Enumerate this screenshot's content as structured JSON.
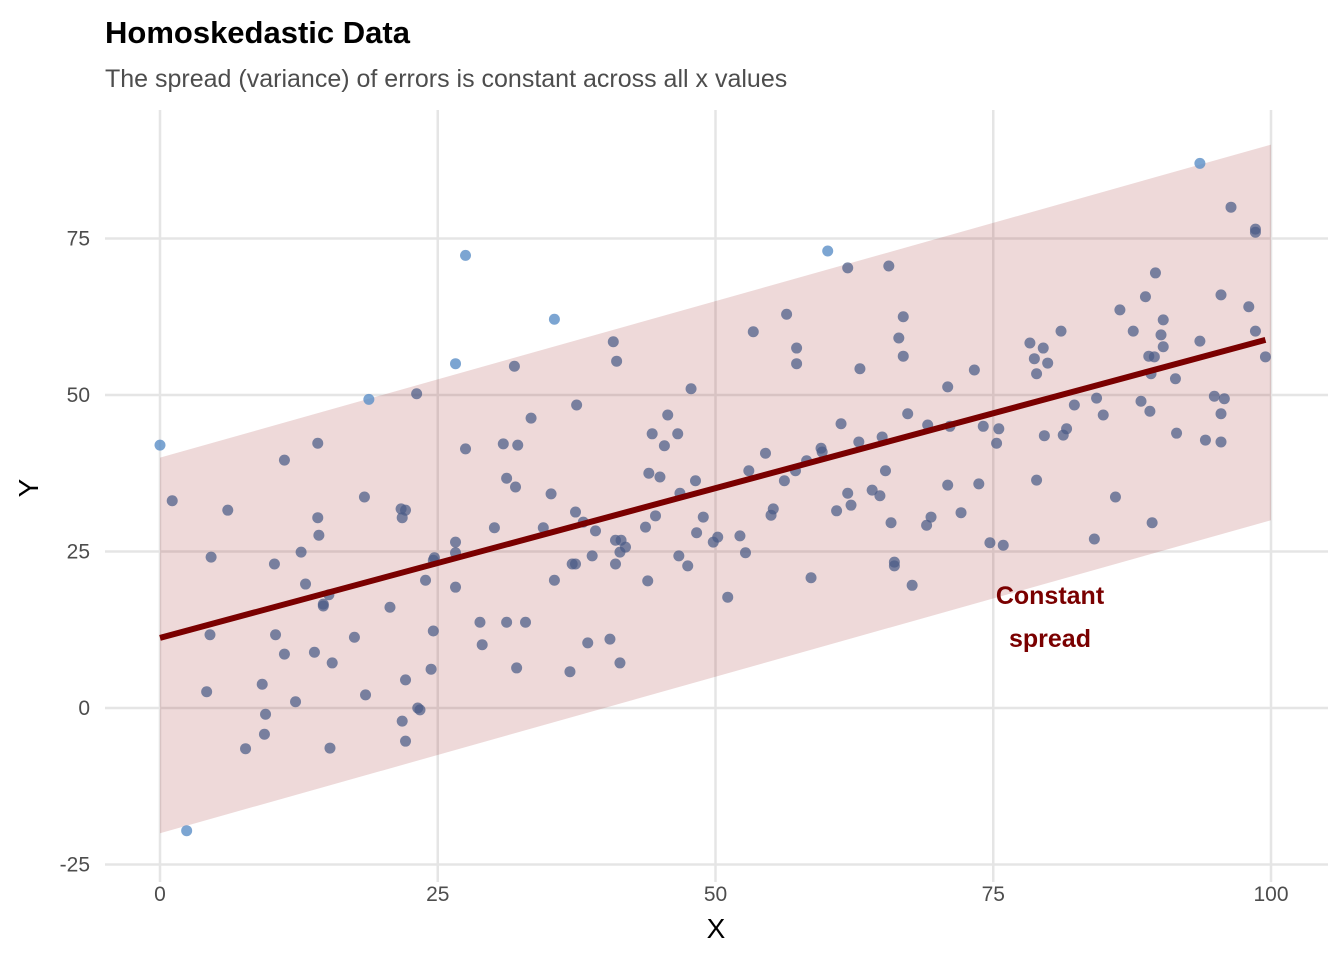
{
  "chart_data": {
    "type": "scatter",
    "title": "Homoskedastic Data",
    "subtitle": "The spread (variance) of errors is constant across all x values",
    "xlabel": "X",
    "ylabel": "Y",
    "xlim": [
      0,
      100
    ],
    "ylim": [
      -25,
      90
    ],
    "x_ticks": [
      0,
      25,
      50,
      75,
      100
    ],
    "y_ticks": [
      -25,
      0,
      25,
      50,
      75
    ],
    "grid": true,
    "colors": {
      "points": "#4b5b86",
      "outliers": "#5b8fc7",
      "line": "#7a0000",
      "band": "#e9d8d9"
    },
    "fit_line": {
      "x": [
        0,
        99.5
      ],
      "y": [
        11.2,
        58.8
      ]
    },
    "band": {
      "x": [
        0,
        100
      ],
      "upper": [
        40,
        90
      ],
      "lower": [
        -20,
        30
      ]
    },
    "annotation": {
      "lines": [
        "Constant",
        "spread"
      ],
      "x": 80,
      "y": 14
    },
    "outlier_points": [
      [
        0,
        42
      ],
      [
        2.4,
        -19.6
      ],
      [
        18.8,
        49.3
      ],
      [
        26.6,
        55
      ],
      [
        27.5,
        72.3
      ],
      [
        35.5,
        62.1
      ],
      [
        60.1,
        73
      ],
      [
        93.6,
        87
      ]
    ],
    "points": [
      [
        1.1,
        33.1
      ],
      [
        4.6,
        24.1
      ],
      [
        6.1,
        31.6
      ],
      [
        4.5,
        11.7
      ],
      [
        4.2,
        2.6
      ],
      [
        7.7,
        -6.5
      ],
      [
        9.2,
        3.8
      ],
      [
        9.5,
        -1.0
      ],
      [
        9.4,
        -4.2
      ],
      [
        10.3,
        23.0
      ],
      [
        10.4,
        11.7
      ],
      [
        11.2,
        39.6
      ],
      [
        11.2,
        8.6
      ],
      [
        12.2,
        1.0
      ],
      [
        12.7,
        24.9
      ],
      [
        13.1,
        19.8
      ],
      [
        13.9,
        8.9
      ],
      [
        14.2,
        42.3
      ],
      [
        14.2,
        30.4
      ],
      [
        14.3,
        27.6
      ],
      [
        14.7,
        16.6
      ],
      [
        14.7,
        16.3
      ],
      [
        15.2,
        18.1
      ],
      [
        15.5,
        7.2
      ],
      [
        15.3,
        -6.4
      ],
      [
        17.5,
        11.3
      ],
      [
        18.4,
        33.7
      ],
      [
        18.5,
        2.1
      ],
      [
        20.7,
        16.1
      ],
      [
        21.7,
        31.8
      ],
      [
        21.8,
        30.4
      ],
      [
        22.1,
        31.6
      ],
      [
        21.8,
        -2.1
      ],
      [
        22.1,
        4.5
      ],
      [
        22.1,
        -5.3
      ],
      [
        23.1,
        50.2
      ],
      [
        23.2,
        0
      ],
      [
        23.4,
        -0.3
      ],
      [
        23.9,
        20.4
      ],
      [
        24.4,
        6.2
      ],
      [
        24.6,
        12.3
      ],
      [
        24.7,
        24.0
      ],
      [
        24.6,
        23.6
      ],
      [
        26.6,
        26.5
      ],
      [
        26.6,
        24.8
      ],
      [
        26.6,
        19.3
      ],
      [
        27.5,
        41.4
      ],
      [
        28.8,
        13.7
      ],
      [
        29.0,
        10.1
      ],
      [
        30.1,
        28.8
      ],
      [
        30.9,
        42.2
      ],
      [
        31.2,
        36.7
      ],
      [
        31.2,
        13.7
      ],
      [
        31.9,
        54.6
      ],
      [
        32.0,
        35.3
      ],
      [
        32.2,
        42.0
      ],
      [
        32.1,
        6.4
      ],
      [
        32.9,
        13.7
      ],
      [
        33.4,
        46.3
      ],
      [
        34.5,
        28.8
      ],
      [
        35.2,
        34.2
      ],
      [
        35.5,
        20.4
      ],
      [
        36.9,
        5.8
      ],
      [
        37.1,
        23.0
      ],
      [
        37.4,
        31.3
      ],
      [
        37.4,
        23.0
      ],
      [
        37.5,
        48.4
      ],
      [
        38.1,
        29.7
      ],
      [
        38.5,
        10.4
      ],
      [
        38.9,
        24.3
      ],
      [
        39.2,
        28.3
      ],
      [
        40.5,
        11.0
      ],
      [
        40.8,
        58.5
      ],
      [
        41.0,
        23.0
      ],
      [
        41.0,
        26.8
      ],
      [
        41.1,
        55.4
      ],
      [
        41.4,
        7.2
      ],
      [
        41.5,
        26.8
      ],
      [
        41.4,
        24.9
      ],
      [
        41.9,
        25.7
      ],
      [
        43.7,
        28.9
      ],
      [
        43.9,
        20.3
      ],
      [
        44.0,
        37.5
      ],
      [
        44.3,
        43.8
      ],
      [
        44.6,
        30.7
      ],
      [
        45.0,
        36.9
      ],
      [
        45.4,
        41.9
      ],
      [
        45.7,
        46.8
      ],
      [
        46.6,
        43.8
      ],
      [
        46.8,
        34.3
      ],
      [
        46.7,
        24.3
      ],
      [
        47.5,
        22.7
      ],
      [
        47.8,
        51.0
      ],
      [
        48.2,
        36.3
      ],
      [
        48.3,
        28.0
      ],
      [
        48.9,
        30.5
      ],
      [
        49.8,
        26.5
      ],
      [
        50.2,
        27.3
      ],
      [
        51.1,
        17.7
      ],
      [
        52.2,
        27.5
      ],
      [
        52.7,
        24.8
      ],
      [
        53.0,
        37.9
      ],
      [
        53.4,
        60.1
      ],
      [
        54.5,
        40.7
      ],
      [
        55.0,
        30.8
      ],
      [
        55.2,
        31.8
      ],
      [
        56.2,
        36.3
      ],
      [
        56.4,
        62.9
      ],
      [
        57.2,
        37.9
      ],
      [
        57.3,
        57.5
      ],
      [
        57.3,
        55.0
      ],
      [
        58.2,
        39.5
      ],
      [
        58.6,
        20.8
      ],
      [
        59.5,
        41.5
      ],
      [
        59.6,
        40.9
      ],
      [
        60.9,
        31.5
      ],
      [
        61.3,
        45.4
      ],
      [
        61.9,
        70.3
      ],
      [
        61.9,
        34.3
      ],
      [
        62.2,
        32.4
      ],
      [
        63.0,
        54.2
      ],
      [
        62.9,
        42.5
      ],
      [
        64.1,
        34.8
      ],
      [
        64.8,
        33.9
      ],
      [
        65.0,
        43.3
      ],
      [
        65.3,
        37.9
      ],
      [
        65.6,
        70.6
      ],
      [
        65.8,
        29.6
      ],
      [
        66.1,
        23.3
      ],
      [
        66.1,
        22.7
      ],
      [
        66.5,
        59.1
      ],
      [
        66.9,
        62.5
      ],
      [
        66.9,
        56.2
      ],
      [
        67.3,
        47.0
      ],
      [
        67.7,
        19.6
      ],
      [
        69.0,
        29.2
      ],
      [
        69.1,
        45.2
      ],
      [
        69.4,
        30.5
      ],
      [
        70.9,
        51.3
      ],
      [
        70.9,
        35.6
      ],
      [
        71.1,
        45.0
      ],
      [
        72.1,
        31.2
      ],
      [
        73.3,
        54.0
      ],
      [
        73.7,
        35.8
      ],
      [
        74.1,
        45.0
      ],
      [
        74.7,
        26.4
      ],
      [
        75.3,
        42.3
      ],
      [
        75.5,
        44.6
      ],
      [
        75.9,
        26.0
      ],
      [
        78.3,
        58.3
      ],
      [
        78.7,
        55.8
      ],
      [
        78.9,
        53.4
      ],
      [
        78.9,
        36.4
      ],
      [
        79.5,
        57.5
      ],
      [
        79.6,
        43.5
      ],
      [
        79.9,
        55.1
      ],
      [
        81.1,
        60.2
      ],
      [
        81.3,
        43.6
      ],
      [
        81.6,
        44.6
      ],
      [
        82.3,
        48.4
      ],
      [
        84.1,
        27.0
      ],
      [
        84.3,
        49.5
      ],
      [
        84.9,
        46.8
      ],
      [
        86.0,
        33.7
      ],
      [
        86.4,
        63.6
      ],
      [
        87.6,
        60.2
      ],
      [
        88.3,
        49.0
      ],
      [
        88.7,
        65.7
      ],
      [
        89.0,
        56.2
      ],
      [
        89.1,
        47.4
      ],
      [
        89.2,
        53.4
      ],
      [
        89.3,
        29.6
      ],
      [
        89.5,
        56.1
      ],
      [
        89.6,
        69.5
      ],
      [
        90.1,
        59.6
      ],
      [
        90.3,
        62.0
      ],
      [
        90.3,
        57.7
      ],
      [
        91.4,
        52.6
      ],
      [
        91.5,
        43.9
      ],
      [
        93.6,
        58.6
      ],
      [
        94.1,
        42.8
      ],
      [
        94.9,
        49.8
      ],
      [
        95.5,
        66.0
      ],
      [
        95.5,
        47.0
      ],
      [
        95.5,
        42.5
      ],
      [
        95.8,
        49.4
      ],
      [
        96.4,
        80.0
      ],
      [
        98.0,
        64.1
      ],
      [
        98.6,
        76.5
      ],
      [
        98.6,
        76.0
      ],
      [
        98.6,
        60.2
      ],
      [
        99.5,
        56.1
      ]
    ]
  }
}
